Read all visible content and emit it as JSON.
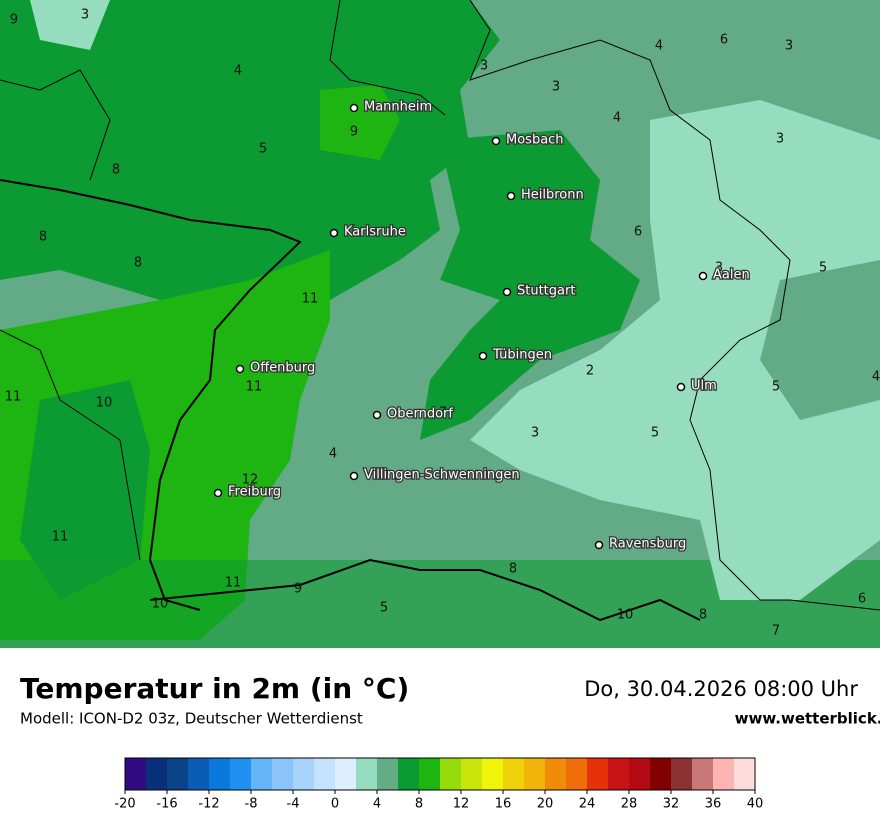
{
  "map": {
    "cities": [
      "Mannheim",
      "Mosbach",
      "Heilbronn",
      "Karlsruhe",
      "Aalen",
      "Stuttgart",
      "Tübingen",
      "Offenburg",
      "Ulm",
      "Oberndorf",
      "Villingen-Schwenningen",
      "Freiburg",
      "Ravensburg"
    ],
    "labels": [
      3,
      9,
      4,
      3,
      4,
      6,
      3,
      3,
      4,
      3,
      9,
      5,
      8,
      8,
      8,
      6,
      3,
      5,
      11,
      8,
      2,
      5,
      4,
      11,
      10,
      11,
      7,
      3,
      5,
      4,
      12,
      11,
      8,
      11,
      9,
      10,
      5,
      10,
      8,
      6,
      7
    ]
  },
  "title": "Temperatur in 2m (in °C)",
  "subtitle": "Modell: ICON-D2 03z, Deutscher Wetterdienst",
  "datetime": "Do, 30.04.2026 08:00 Uhr",
  "website": "www.wetterblick.com",
  "colorbar": {
    "range": [
      -20,
      40
    ],
    "ticks": [
      -20,
      -16,
      -12,
      -8,
      -4,
      0,
      4,
      8,
      12,
      16,
      20,
      24,
      28,
      32,
      36,
      40
    ],
    "colors": [
      "#320a82",
      "#0a2f7a",
      "#0a4388",
      "#0a5cb4",
      "#0a78dc",
      "#2090f0",
      "#64b4f8",
      "#8cc4fa",
      "#a8d4fc",
      "#c4e2fe",
      "#dceeff",
      "#96dcbe",
      "#64ac86",
      "#0c9a32",
      "#1eb412",
      "#96dc0a",
      "#c8e60a",
      "#f0f50a",
      "#f0d20a",
      "#f0b40a",
      "#f08c0a",
      "#f06e0a",
      "#e6320a",
      "#c81414",
      "#b40a14",
      "#820000",
      "#8c3232",
      "#c87878",
      "#ffb4b4",
      "#ffdcdc"
    ]
  }
}
